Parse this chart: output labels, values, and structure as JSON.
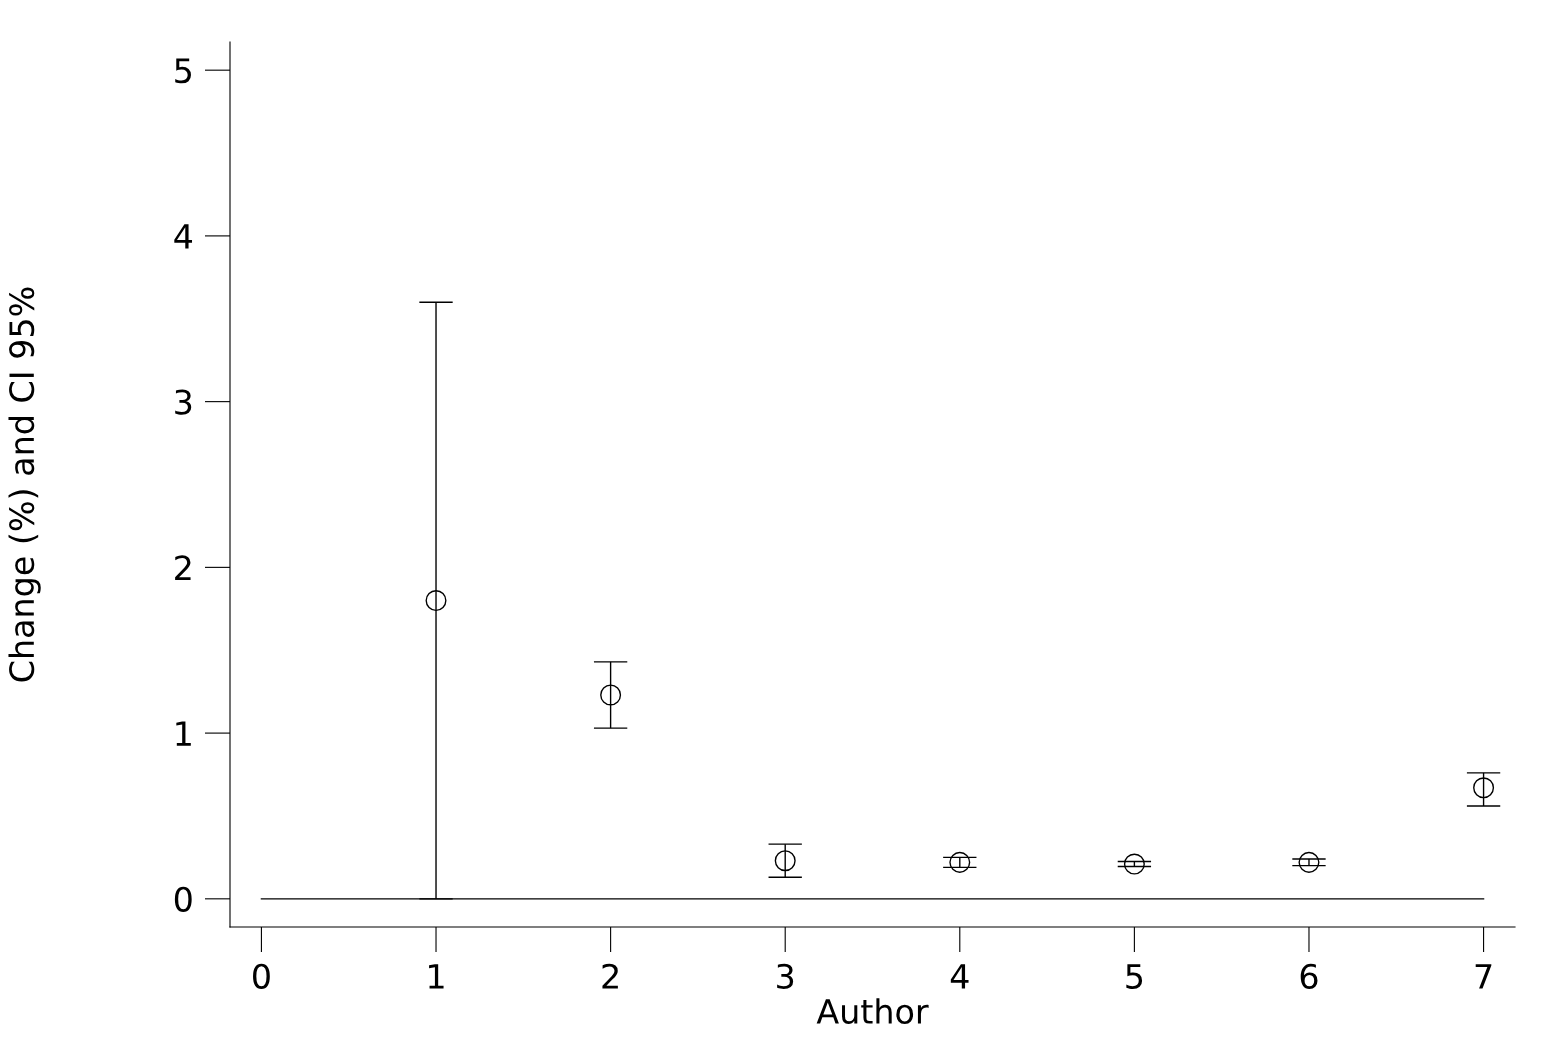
{
  "chart_data": {
    "type": "scatter",
    "xlabel": "Author",
    "ylabel": "Change (%) and CI 95%",
    "x": [
      1,
      2,
      3,
      4,
      5,
      6,
      7
    ],
    "values": [
      1.8,
      1.23,
      0.23,
      0.22,
      0.21,
      0.22,
      0.67
    ],
    "errors": [
      [
        0,
        3.6
      ],
      [
        1.03,
        1.43
      ],
      [
        0.13,
        0.33
      ],
      [
        0.19,
        0.25
      ],
      [
        0.195,
        0.225
      ],
      [
        0.2,
        0.24
      ],
      [
        0.56,
        0.76
      ]
    ],
    "color": "#000000",
    "marker": "circle",
    "xlim": [
      -0.18,
      7.18
    ],
    "xticks": [
      0,
      1,
      2,
      3,
      4,
      5,
      6,
      7
    ],
    "ylim": [
      -0.17,
      5.17
    ],
    "yticks": [
      0,
      1,
      2,
      3,
      4,
      5
    ],
    "ref_lines": [
      {
        "axis": "y",
        "value": 0,
        "label": null,
        "color": "#000000"
      }
    ],
    "grid": false,
    "legend": false
  }
}
